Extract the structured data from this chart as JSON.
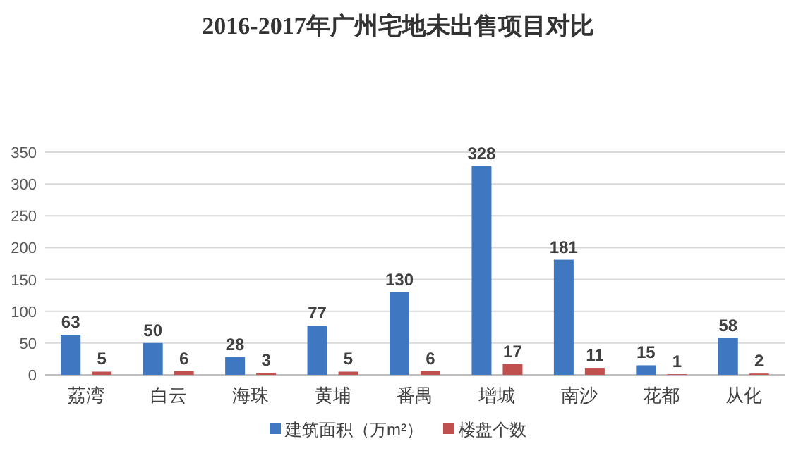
{
  "chart_data": {
    "type": "bar",
    "title": "2016-2017年广州宅地未出售项目对比",
    "categories": [
      "荔湾",
      "白云",
      "海珠",
      "黄埔",
      "番禺",
      "增城",
      "南沙",
      "花都",
      "从化"
    ],
    "series": [
      {
        "name": "建筑面积（万m²）",
        "color": "#3f78c1",
        "values": [
          63,
          50,
          28,
          77,
          130,
          328,
          181,
          15,
          58
        ]
      },
      {
        "name": "楼盘个数",
        "color": "#c0504d",
        "values": [
          5,
          6,
          3,
          5,
          6,
          17,
          11,
          1,
          2
        ]
      }
    ],
    "ylim": [
      0,
      350
    ],
    "yticks": [
      0,
      50,
      100,
      150,
      200,
      250,
      300,
      350
    ],
    "grid": "y",
    "legend": "bottom",
    "data_labels": true
  }
}
